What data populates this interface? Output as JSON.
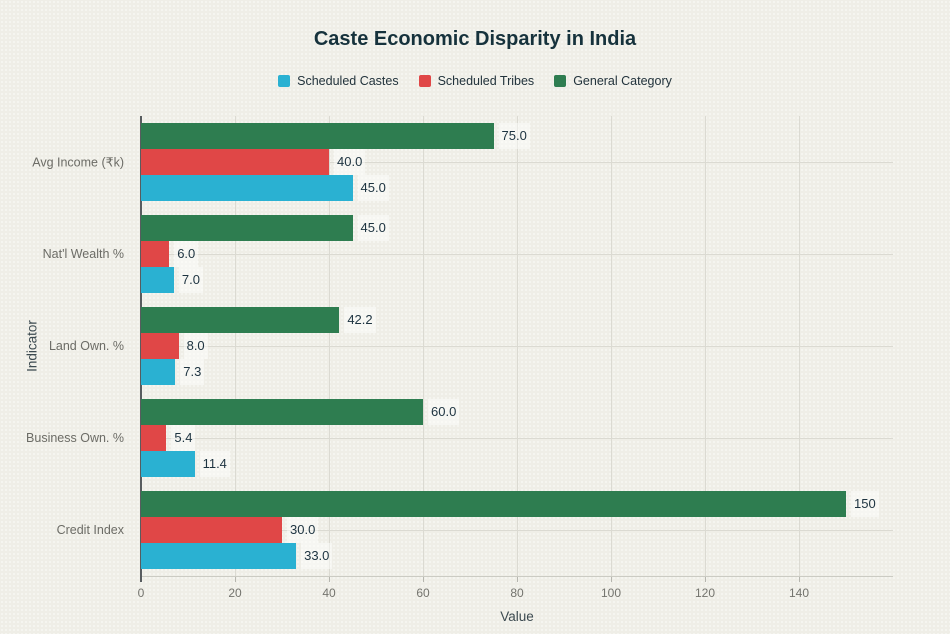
{
  "title": "Caste Economic Disparity in India",
  "colors": {
    "background": "#efeee7",
    "grid": "#dbdad2",
    "spine": "#585c5f",
    "tick_text": "#74746e",
    "category_text": "#6c6c66",
    "value_text": "#1d3340",
    "title_text": "#16323c",
    "scheduled_castes": "#2ab1d2",
    "scheduled_tribes": "#e04747",
    "general_category": "#2e7d50"
  },
  "chart_data": {
    "type": "bar",
    "orientation": "horizontal",
    "title": "Caste Economic Disparity in India",
    "xlabel": "Value",
    "ylabel": "Indicator",
    "xlim": [
      0,
      160
    ],
    "xticks": [
      0,
      20,
      40,
      60,
      80,
      100,
      120,
      140
    ],
    "grid": true,
    "legend_position": "top",
    "categories": [
      "Avg Income (₹k)",
      "Nat'l Wealth %",
      "Land Own. %",
      "Business Own. %",
      "Credit Index"
    ],
    "series": [
      {
        "name": "Scheduled Castes",
        "color": "#2ab1d2",
        "values": [
          45.0,
          7.0,
          7.3,
          11.4,
          33.0
        ],
        "labels": [
          "45.0",
          "7.0",
          "7.3",
          "11.4",
          "33.0"
        ]
      },
      {
        "name": "Scheduled Tribes",
        "color": "#e04747",
        "values": [
          40.0,
          6.0,
          8.0,
          5.4,
          30.0
        ],
        "labels": [
          "40.0",
          "6.0",
          "8.0",
          "5.4",
          "30.0"
        ]
      },
      {
        "name": "General Category",
        "color": "#2e7d50",
        "values": [
          75.0,
          45.0,
          42.2,
          60.0,
          150
        ],
        "labels": [
          "75.0",
          "45.0",
          "42.2",
          "60.0",
          "150"
        ]
      }
    ]
  }
}
